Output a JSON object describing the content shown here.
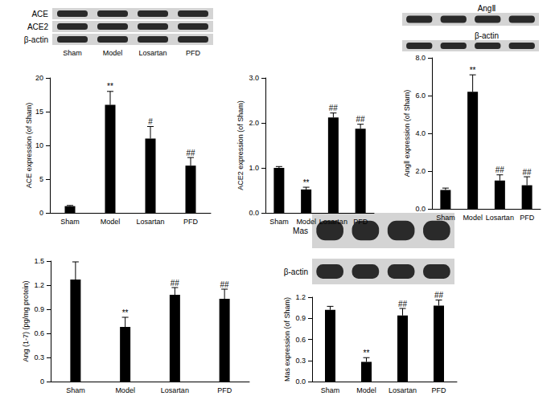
{
  "blots": [
    {
      "rows": [
        "ACE",
        "ACE2",
        "β-actin"
      ],
      "lanes": [
        "Sham",
        "Model",
        "Losartan",
        "PFD"
      ]
    },
    {
      "rows": [
        "AngⅡ",
        "β-actin"
      ]
    },
    {
      "rows": [
        "Mas",
        "β-actin"
      ]
    }
  ],
  "chart_data": [
    {
      "type": "bar",
      "y_label": "ACE expression (of Sham)",
      "categories": [
        "Sham",
        "Model",
        "Losartan",
        "PFD"
      ],
      "values": [
        1.0,
        16.0,
        11.0,
        7.0
      ],
      "errors": [
        0.1,
        2.0,
        1.8,
        1.2
      ],
      "significance": [
        null,
        "**",
        "#",
        "##"
      ],
      "color": "#000000",
      "ylim": [
        0,
        20
      ],
      "yticks": [
        0,
        5,
        10,
        15,
        20
      ],
      "grid": false
    },
    {
      "type": "bar",
      "y_label": "ACE2 expression (of Sham)",
      "categories": [
        "Sham",
        "Model",
        "Losartan",
        "PFD"
      ],
      "values": [
        1.0,
        0.52,
        2.12,
        1.87
      ],
      "errors": [
        0.03,
        0.05,
        0.1,
        0.1
      ],
      "significance": [
        null,
        "**",
        "##",
        "##"
      ],
      "color": "#000000",
      "ylim": [
        0,
        3
      ],
      "yticks": [
        {
          "value": 0,
          "label": "0.0"
        },
        {
          "value": 1,
          "label": "1.0"
        },
        {
          "value": 2,
          "label": "2.0"
        },
        {
          "value": 3,
          "label": "3.0"
        }
      ],
      "grid": false
    },
    {
      "type": "bar",
      "y_label": "AngⅡ expression (of Sham)",
      "categories": [
        "Sham",
        "Model",
        "Losartan",
        "PFD"
      ],
      "values": [
        1.0,
        6.2,
        1.5,
        1.25
      ],
      "errors": [
        0.1,
        0.9,
        0.3,
        0.45
      ],
      "significance": [
        null,
        "**",
        "##",
        "##"
      ],
      "color": "#000000",
      "ylim": [
        0,
        8
      ],
      "yticks": [
        {
          "value": 0,
          "label": "0.0"
        },
        {
          "value": 2,
          "label": "2.0"
        },
        {
          "value": 4,
          "label": "4.0"
        },
        {
          "value": 6,
          "label": "6.0"
        },
        {
          "value": 8,
          "label": "8.0"
        }
      ],
      "grid": false
    },
    {
      "type": "bar",
      "y_label": "Ang (1-7) (pg/mg protein)",
      "categories": [
        "Sham",
        "Model",
        "Losartan",
        "PFD"
      ],
      "values": [
        1.27,
        0.68,
        1.08,
        1.03
      ],
      "errors": [
        0.22,
        0.12,
        0.09,
        0.12
      ],
      "significance": [
        null,
        "**",
        "##",
        "##"
      ],
      "color": "#000000",
      "ylim": [
        0,
        1.5
      ],
      "yticks": [
        0,
        0.3,
        0.6,
        0.9,
        1.2,
        1.5
      ],
      "grid": false
    },
    {
      "type": "bar",
      "y_label": "Mas expression (of Sham)",
      "categories": [
        "Sham",
        "Model",
        "Losartan",
        "PFD"
      ],
      "values": [
        1.02,
        0.28,
        0.94,
        1.08
      ],
      "errors": [
        0.05,
        0.06,
        0.1,
        0.08
      ],
      "significance": [
        null,
        "**",
        "##",
        "##"
      ],
      "color": "#000000",
      "ylim": [
        0,
        1.2
      ],
      "yticks": [
        {
          "value": 0,
          "label": "0.0"
        },
        {
          "value": 0.3,
          "label": "0.3"
        },
        {
          "value": 0.6,
          "label": "0.6"
        },
        {
          "value": 0.9,
          "label": "0.9"
        },
        {
          "value": 1.2,
          "label": "1.2"
        }
      ],
      "grid": false
    }
  ]
}
